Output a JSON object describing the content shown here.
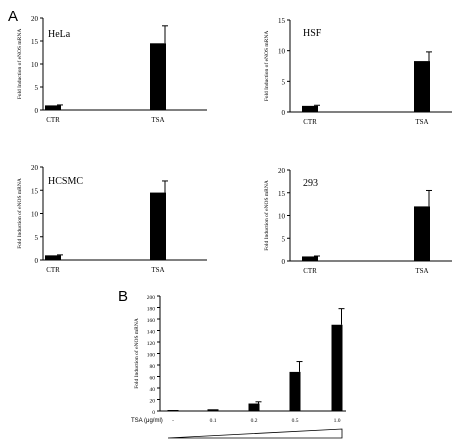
{
  "figure": {
    "panel_a_letter": "A",
    "panel_b_letter": "B"
  },
  "chart_data": [
    {
      "type": "bar",
      "panel": "A",
      "title": "HeLa",
      "ylabel": "Fold Induction of eNOS mRNA",
      "categories": [
        "CTR",
        "TSA"
      ],
      "values": [
        1,
        14.5
      ],
      "errors": [
        0.1,
        3.8
      ],
      "ylim": [
        0,
        20
      ],
      "yticks": [
        0,
        5,
        10,
        15,
        20
      ],
      "grid": false
    },
    {
      "type": "bar",
      "panel": "A",
      "title": "HSF",
      "ylabel": "Fold Induction of eNOS mRNA",
      "categories": [
        "CTR",
        "TSA"
      ],
      "values": [
        1,
        8.3
      ],
      "errors": [
        0.1,
        1.5
      ],
      "ylim": [
        0,
        15
      ],
      "yticks": [
        0,
        5,
        10,
        15
      ],
      "grid": false
    },
    {
      "type": "bar",
      "panel": "A",
      "title": "HCSMC",
      "ylabel": "Fold Induction of eNOS mRNA",
      "categories": [
        "CTR",
        "TSA"
      ],
      "values": [
        1,
        14.5
      ],
      "errors": [
        0.1,
        2.5
      ],
      "ylim": [
        0,
        20
      ],
      "yticks": [
        0,
        5,
        10,
        15,
        20
      ],
      "grid": false
    },
    {
      "type": "bar",
      "panel": "A",
      "title": "293",
      "ylabel": "Fold Induction of eNOS mRNA",
      "categories": [
        "CTR",
        "TSA"
      ],
      "values": [
        1,
        12
      ],
      "errors": [
        0.1,
        3.5
      ],
      "ylim": [
        0,
        20
      ],
      "yticks": [
        0,
        5,
        10,
        15,
        20
      ],
      "grid": false
    },
    {
      "type": "bar",
      "panel": "B",
      "title": "",
      "ylabel": "Fold Induction of eNOS mRNA",
      "xlabel": "TSA (μg/ml)",
      "categories": [
        "-",
        "0.1",
        "0.2",
        "0.5",
        "1.0"
      ],
      "values": [
        1,
        3,
        13,
        68,
        150
      ],
      "errors": [
        0,
        0.5,
        3,
        18,
        28
      ],
      "ylim": [
        0,
        200
      ],
      "yticks": [
        0,
        20,
        40,
        60,
        80,
        100,
        120,
        140,
        160,
        180,
        200
      ],
      "ytick_labels": [
        "0",
        "20",
        "40",
        "60",
        "80",
        "100",
        "120",
        "140",
        "160",
        "180",
        "200"
      ],
      "grid": false,
      "has_ramp_wedge": true
    }
  ]
}
